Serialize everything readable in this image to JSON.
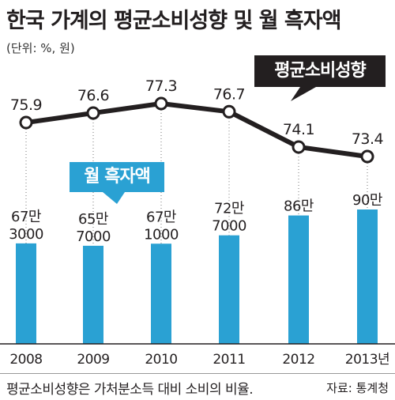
{
  "title": "한국 가계의 평균소비성향 및 월 흑자액",
  "unit_note": "(단위: %, 원)",
  "footnote": "평균소비성향은 가처분소득 대비 소비의 비율.",
  "source": "자료: 통계청",
  "callouts": {
    "avg_propensity": "평균소비성향",
    "monthly_surplus": "월 흑자액"
  },
  "colors": {
    "bar": "#2aa1d3",
    "line": "#231f20",
    "text": "#231f20"
  },
  "chart_data": {
    "type": "bar",
    "categories": [
      "2008",
      "2009",
      "2010",
      "2011",
      "2012",
      "2013년"
    ],
    "series": [
      {
        "name": "월 흑자액",
        "type": "bar",
        "values": [
          673000,
          657000,
          671000,
          727000,
          860000,
          900000
        ],
        "labels": [
          [
            "67만",
            "3000"
          ],
          [
            "65만",
            "7000"
          ],
          [
            "67만",
            "1000"
          ],
          [
            "72만",
            "7000"
          ],
          [
            "86만"
          ],
          [
            "90만"
          ]
        ]
      },
      {
        "name": "평균소비성향",
        "type": "line",
        "values": [
          75.9,
          76.6,
          77.3,
          76.7,
          74.1,
          73.4
        ],
        "labels": [
          "75.9",
          "76.6",
          "77.3",
          "76.7",
          "74.1",
          "73.4"
        ]
      }
    ]
  }
}
